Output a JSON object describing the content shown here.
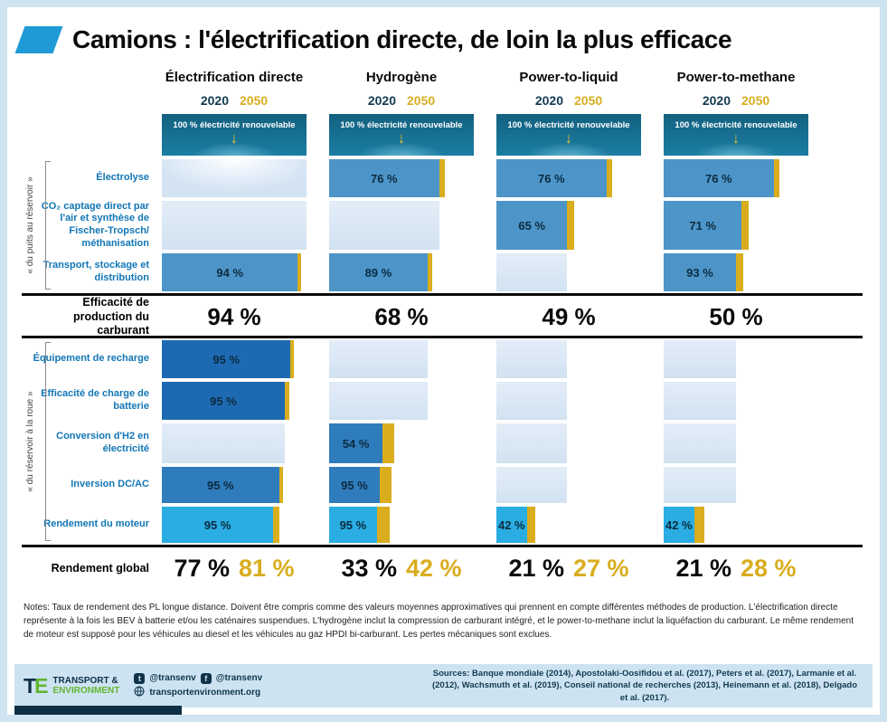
{
  "title": "Camions : l'électrification directe, de loin la plus efficace",
  "colors": {
    "accent_blue": "#1f9ad6",
    "gold_2050": "#d9ad1e",
    "dark_navy_2020": "#123a50",
    "teal_banner": "#176a8c",
    "light_bar": "#d8e6f3",
    "mid_blue_bar": "#4d95c9",
    "dark_blue_bar": "#1e6ab2",
    "cyan_bar": "#29ade2"
  },
  "chart_data": {
    "type": "bar",
    "unit": "%",
    "legend": [
      {
        "name": "2020",
        "color": "#123a50"
      },
      {
        "name": "2050",
        "color": "#d9ad1e"
      }
    ],
    "columns": [
      {
        "name": "Électrification directe",
        "year_2020": "2020",
        "year_2050": "2050",
        "renewable_label": "100 % électricité renouvelable"
      },
      {
        "name": "Hydrogène",
        "year_2020": "2020",
        "year_2050": "2050",
        "renewable_label": "100 % électricité renouvelable"
      },
      {
        "name": "Power-to-liquid",
        "year_2020": "2020",
        "year_2050": "2050",
        "renewable_label": "100 % électricité renouvelable"
      },
      {
        "name": "Power-to-methane",
        "year_2020": "2020",
        "year_2050": "2050",
        "renewable_label": "100 % électricité renouvelable"
      }
    ],
    "sections": {
      "well_to_tank": "« du puits au réservoir »",
      "tank_to_wheel": "« du réservoir à la roue »"
    },
    "rows": [
      {
        "id": "electrolyse",
        "label": "Électrolyse",
        "cells": [
          {
            "light": 100,
            "glow": true
          },
          {
            "dark": 76,
            "gold": 80,
            "label": "76 %",
            "color": "#4d95c9"
          },
          {
            "dark": 76,
            "gold": 80,
            "label": "76 %",
            "color": "#4d95c9"
          },
          {
            "dark": 76,
            "gold": 80,
            "label": "76 %",
            "color": "#4d95c9"
          }
        ]
      },
      {
        "id": "co2-captage",
        "label": "CO₂ captage direct par l'air et synthèse de Fischer-Tropsch/ méthanisation",
        "cells": [
          {
            "light": 100
          },
          {
            "light": 76
          },
          {
            "dark": 49,
            "gold": 54,
            "label": "65 %",
            "color": "#4d95c9"
          },
          {
            "dark": 54,
            "gold": 59,
            "label": "71 %",
            "color": "#4d95c9"
          }
        ]
      },
      {
        "id": "transport-stockage",
        "label": "Transport, stockage et distribution",
        "cells": [
          {
            "dark": 94,
            "gold": 96,
            "label": "94 %",
            "color": "#4d95c9"
          },
          {
            "dark": 68,
            "gold": 71,
            "label": "89 %",
            "color": "#4d95c9"
          },
          {
            "light": 49
          },
          {
            "dark": 50,
            "gold": 55,
            "label": "93 %",
            "color": "#4d95c9"
          }
        ]
      },
      {
        "id": "equipement-recharge",
        "label": "Équipement de recharge",
        "cells": [
          {
            "dark": 89,
            "gold": 91,
            "label": "95 %",
            "color": "#1e6ab2"
          },
          {
            "light": 68
          },
          {
            "light": 49
          },
          {
            "light": 50
          }
        ]
      },
      {
        "id": "charge-batterie",
        "label": "Efficacité de charge de batterie",
        "cells": [
          {
            "dark": 85,
            "gold": 88,
            "label": "95 %",
            "color": "#1e6ab2"
          },
          {
            "light": 68
          },
          {
            "light": 49
          },
          {
            "light": 50
          }
        ]
      },
      {
        "id": "conversion-h2",
        "label": "Conversion d'H2 en électricité",
        "cells": [
          {
            "light": 85
          },
          {
            "dark": 37,
            "gold": 45,
            "label": "54 %",
            "color": "#2f7cbd"
          },
          {
            "light": 49
          },
          {
            "light": 50
          }
        ]
      },
      {
        "id": "inversion-dcac",
        "label": "Inversion DC/AC",
        "cells": [
          {
            "dark": 81,
            "gold": 84,
            "label": "95 %",
            "color": "#2f7cbd"
          },
          {
            "dark": 35,
            "gold": 43,
            "label": "95 %",
            "color": "#2f7cbd"
          },
          {
            "light": 49
          },
          {
            "light": 50
          }
        ]
      },
      {
        "id": "rendement-moteur",
        "label": "Rendement du moteur",
        "cells": [
          {
            "dark": 77,
            "gold": 81,
            "label": "95 %",
            "color": "#29ade2"
          },
          {
            "dark": 33,
            "gold": 42,
            "label": "95 %",
            "color": "#29ade2"
          },
          {
            "dark": 21,
            "gold": 27,
            "label": "42 %",
            "color": "#29ade2"
          },
          {
            "dark": 21,
            "gold": 28,
            "label": "42 %",
            "color": "#29ade2"
          }
        ]
      }
    ],
    "production_row": {
      "label": "Efficacité de production du carburant",
      "values": [
        "94 %",
        "68 %",
        "49 %",
        "50 %"
      ]
    },
    "global_row": {
      "label": "Rendement global",
      "values": [
        {
          "y2020": "77 %",
          "y2050": "81 %"
        },
        {
          "y2020": "33 %",
          "y2050": "42 %"
        },
        {
          "y2020": "21 %",
          "y2050": "27 %"
        },
        {
          "y2020": "21 %",
          "y2050": "28 %"
        }
      ]
    }
  },
  "notes": "Notes: Taux de rendement des PL longue distance. Doivent être compris comme des valeurs moyennes approximatives qui prennent en compte différentes méthodes de production. L'électrification directe représente à la fois les BEV à batterie et/ou les caténaires suspendues. L'hydrogène inclut la compression de carburant intégré, et le power-to-methane inclut la liquéfaction du carburant. Le même rendement de moteur est supposé pour les véhicules au diesel et les véhicules au gaz HPDI bi-carburant. Les pertes mécaniques sont exclues.",
  "footer": {
    "logo": {
      "mark_t": "T",
      "mark_e": "E",
      "line1": "TRANSPORT &",
      "line2": "ENVIRONMENT"
    },
    "social": {
      "twitter": "@transenv",
      "facebook": "@transenv",
      "website": "transportenvironment.org"
    },
    "sources": "Sources: Banque mondiale (2014), Apostolaki-Oosifidou et al. (2017), Peters et al. (2017), Larmanie et al. (2012), Wachsmuth et al. (2019), Conseil national de recherches (2013), Heinemann et al. (2018), Delgado et al. (2017)."
  }
}
